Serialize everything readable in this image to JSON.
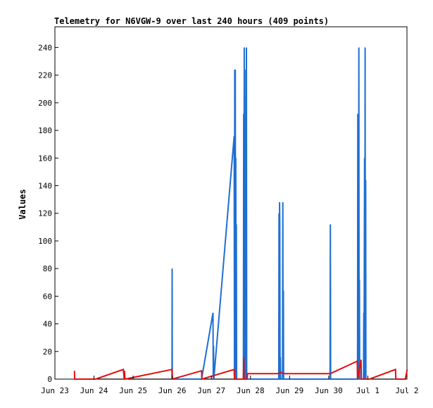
{
  "chart_data": {
    "type": "line",
    "title": "Telemetry for N6VGW-9 over last 240 hours (409 points)",
    "ylabel": "Values",
    "xlabel": "",
    "ylim": [
      0,
      255
    ],
    "xlim": [
      "Jun 23",
      "Jul 2"
    ],
    "grid": false,
    "legend": "none",
    "y_ticks": [
      0,
      20,
      40,
      60,
      80,
      100,
      120,
      140,
      160,
      180,
      200,
      220,
      240
    ],
    "x_ticks": [
      "Jun 23",
      "Jun 24",
      "Jun 25",
      "Jun 26",
      "Jun 27",
      "Jun 28",
      "Jun 29",
      "Jun 30",
      "Jul 1",
      "Jul 2"
    ],
    "colors": {
      "blue": "#1f6fd1",
      "red": "#e01010",
      "black": "#000000"
    },
    "series": [
      {
        "color": "#000000",
        "points": [
          [
            "Jun 23 12:00",
            0
          ],
          [
            "Jul 1 23:00",
            0
          ]
        ]
      },
      {
        "color": "#1f6fd1",
        "points": [
          [
            "Jun 25 23:50",
            0
          ],
          [
            "Jun 25 23:55",
            80
          ],
          [
            "Jun 26 00:00",
            0
          ],
          [
            "Jun 26 18:00",
            0
          ],
          [
            "Jun 27 01:00",
            48
          ],
          [
            "Jun 27 01:10",
            0
          ],
          [
            "Jun 27 01:20",
            24
          ],
          [
            "Jun 27 01:30",
            0
          ],
          [
            "Jun 27 14:00",
            176
          ],
          [
            "Jun 27 14:10",
            0
          ],
          [
            "Jun 27 14:20",
            224
          ],
          [
            "Jun 27 14:30",
            0
          ],
          [
            "Jun 27 14:40",
            224
          ],
          [
            "Jun 27 14:50",
            0
          ],
          [
            "Jun 27 15:00",
            160
          ],
          [
            "Jun 27 15:10",
            0
          ],
          [
            "Jun 27 15:20",
            112
          ],
          [
            "Jun 27 15:30",
            0
          ],
          [
            "Jun 27 19:40",
            0
          ],
          [
            "Jun 27 19:50",
            192
          ],
          [
            "Jun 27 20:00",
            0
          ],
          [
            "Jun 27 20:10",
            240
          ],
          [
            "Jun 27 20:20",
            0
          ],
          [
            "Jun 27 20:30",
            128
          ],
          [
            "Jun 27 20:40",
            0
          ],
          [
            "Jun 27 21:10",
            224
          ],
          [
            "Jun 27 21:20",
            0
          ],
          [
            "Jun 27 21:30",
            240
          ],
          [
            "Jun 27 21:40",
            0
          ],
          [
            "Jun 28 17:20",
            0
          ],
          [
            "Jun 28 17:30",
            120
          ],
          [
            "Jun 28 17:40",
            0
          ],
          [
            "Jun 28 17:50",
            128
          ],
          [
            "Jun 28 18:00",
            112
          ],
          [
            "Jun 28 18:10",
            0
          ],
          [
            "Jun 28 18:20",
            16
          ],
          [
            "Jun 28 18:30",
            0
          ],
          [
            "Jun 28 19:40",
            0
          ],
          [
            "Jun 28 19:50",
            128
          ],
          [
            "Jun 28 20:00",
            0
          ],
          [
            "Jun 28 20:10",
            64
          ],
          [
            "Jun 28 20:20",
            0
          ],
          [
            "Jun 30 00:50",
            0
          ],
          [
            "Jun 30 01:00",
            112
          ],
          [
            "Jun 30 01:10",
            0
          ],
          [
            "Jun 30 17:40",
            0
          ],
          [
            "Jun 30 17:50",
            192
          ],
          [
            "Jun 30 18:00",
            0
          ],
          [
            "Jun 30 18:10",
            192
          ],
          [
            "Jun 30 18:20",
            0
          ],
          [
            "Jun 30 18:30",
            240
          ],
          [
            "Jun 30 18:40",
            0
          ],
          [
            "Jun 30 18:50",
            72
          ],
          [
            "Jun 30 19:00",
            0
          ],
          [
            "Jun 30 21:20",
            0
          ],
          [
            "Jun 30 21:30",
            48
          ],
          [
            "Jun 30 21:40",
            0
          ],
          [
            "Jun 30 22:00",
            160
          ],
          [
            "Jun 30 22:10",
            0
          ],
          [
            "Jun 30 22:20",
            240
          ],
          [
            "Jun 30 22:30",
            0
          ],
          [
            "Jun 30 22:40",
            144
          ],
          [
            "Jun 30 22:50",
            0
          ]
        ]
      },
      {
        "color": "#e01010",
        "points": [
          [
            "Jun 23 12:00",
            6
          ],
          [
            "Jun 23 12:05",
            0
          ],
          [
            "Jun 24 01:00",
            0
          ],
          [
            "Jun 24 18:00",
            7
          ],
          [
            "Jun 24 18:30",
            0
          ],
          [
            "Jun 24 18:40",
            6
          ],
          [
            "Jun 24 19:00",
            0
          ],
          [
            "Jun 25 23:50",
            7
          ],
          [
            "Jun 26 00:00",
            0
          ],
          [
            "Jun 26 18:00",
            6
          ],
          [
            "Jun 26 18:10",
            0
          ],
          [
            "Jun 27 14:00",
            7
          ],
          [
            "Jun 27 14:10",
            0
          ],
          [
            "Jun 27 19:40",
            0
          ],
          [
            "Jun 27 19:50",
            16
          ],
          [
            "Jun 27 20:00",
            0
          ],
          [
            "Jun 27 22:00",
            0
          ],
          [
            "Jun 27 22:10",
            4
          ],
          [
            "Jun 28 17:20",
            4
          ],
          [
            "Jun 28 18:30",
            5
          ],
          [
            "Jun 28 20:00",
            4
          ],
          [
            "Jun 30 01:00",
            4
          ],
          [
            "Jun 30 17:30",
            13
          ],
          [
            "Jun 30 17:40",
            0
          ],
          [
            "Jun 30 19:50",
            14
          ],
          [
            "Jun 30 20:00",
            0
          ],
          [
            "Jul 1 01:00",
            0
          ],
          [
            "Jul 1 17:00",
            7
          ],
          [
            "Jul 1 17:10",
            0
          ],
          [
            "Jul 1 23:00",
            0
          ],
          [
            "Jul 2 00:10",
            7
          ]
        ]
      }
    ]
  }
}
